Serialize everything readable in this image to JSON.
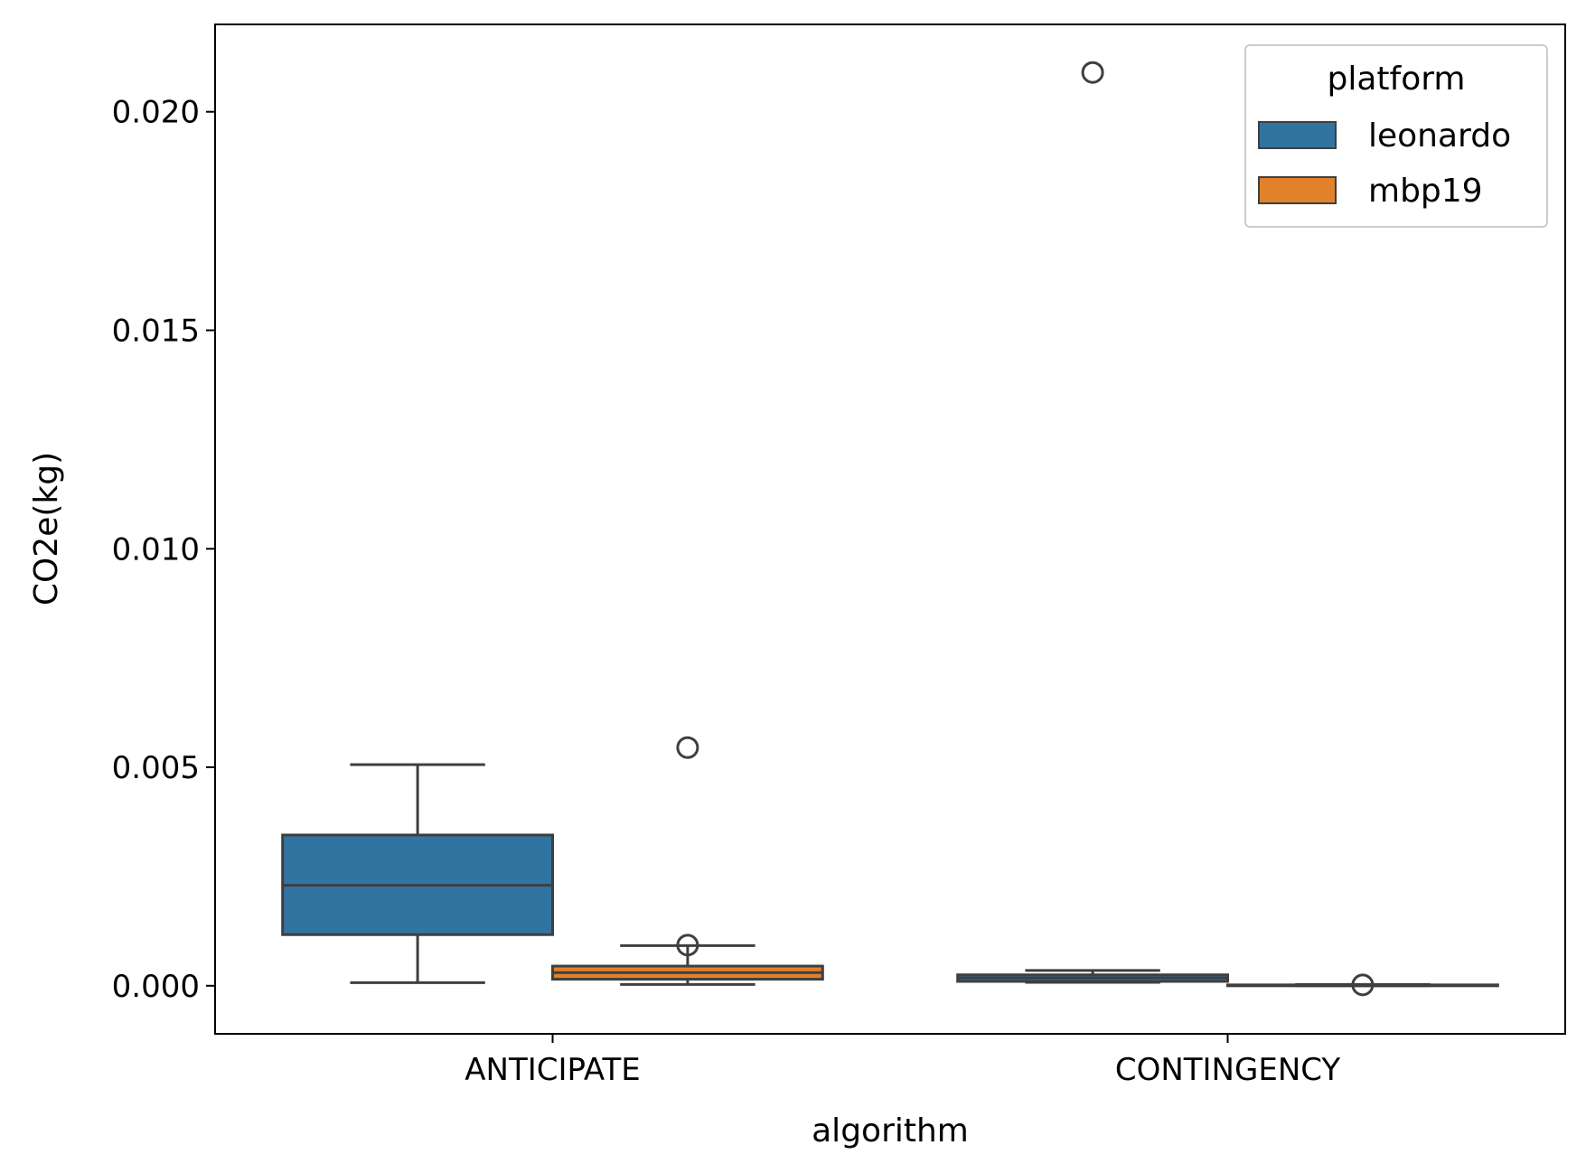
{
  "chart_data": {
    "type": "box",
    "xlabel": "algorithm",
    "ylabel": "CO2e(kg)",
    "categories": [
      "ANTICIPATE",
      "CONTINGENCY"
    ],
    "ylim": [
      -0.0011,
      0.022
    ],
    "yticks": [
      0.0,
      0.005,
      0.01,
      0.015,
      0.02
    ],
    "ytick_labels": [
      "0.000",
      "0.005",
      "0.010",
      "0.015",
      "0.020"
    ],
    "grid": false,
    "legend": {
      "title": "platform",
      "placement": "top-right"
    },
    "series": [
      {
        "name": "leonardo",
        "color": "#3274a1",
        "boxes": [
          {
            "category": "ANTICIPATE",
            "whislo": 7e-05,
            "q1": 0.00117,
            "median": 0.0023,
            "q3": 0.00345,
            "whishi": 0.00506,
            "fliers": []
          },
          {
            "category": "CONTINGENCY",
            "whislo": 8e-05,
            "q1": 0.0001,
            "median": 0.00018,
            "q3": 0.00025,
            "whishi": 0.00035,
            "fliers": [
              0.0209
            ]
          }
        ]
      },
      {
        "name": "mbp19",
        "color": "#e1812c",
        "boxes": [
          {
            "category": "ANTICIPATE",
            "whislo": 3e-05,
            "q1": 0.00015,
            "median": 0.0003,
            "q3": 0.00045,
            "whishi": 0.00092,
            "fliers": [
              0.00545,
              0.00093
            ]
          },
          {
            "category": "CONTINGENCY",
            "whislo": 0.0,
            "q1": 1e-05,
            "median": 1e-05,
            "q3": 2e-05,
            "whishi": 3e-05,
            "fliers": [
              2e-05
            ]
          }
        ]
      }
    ]
  }
}
